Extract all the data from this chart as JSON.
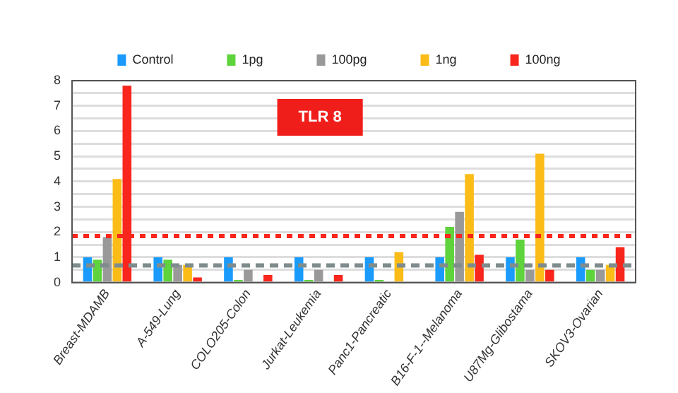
{
  "chart_data": {
    "type": "bar",
    "categories": [
      "Breast-MDAMB",
      "A-549-Lung",
      "COLO205-Colon",
      "Jurkat-Leukemia",
      "Panc1-Pancreatic",
      "B16-F-1--Melanoma",
      "U87Mg-Glibostama",
      "SKOV3-Ovarian"
    ],
    "series": [
      {
        "name": "Control",
        "color": "#1a9bfc",
        "values": [
          1.0,
          1.0,
          1.0,
          1.0,
          1.0,
          1.0,
          1.0,
          1.0
        ]
      },
      {
        "name": "1pg",
        "color": "#5ed33c",
        "values": [
          0.9,
          0.9,
          0.1,
          0.1,
          0.1,
          2.2,
          1.7,
          0.5
        ]
      },
      {
        "name": "100pg",
        "color": "#999999",
        "values": [
          1.8,
          0.7,
          0.5,
          0.5,
          0,
          2.8,
          0.5,
          0.5
        ]
      },
      {
        "name": "1ng",
        "color": "#fbbc18",
        "values": [
          4.1,
          0.7,
          0,
          0,
          1.2,
          4.3,
          5.1,
          0.7
        ]
      },
      {
        "name": "100ng",
        "color": "#f8261c",
        "values": [
          7.8,
          0.2,
          0.3,
          0.3,
          0,
          1.1,
          0.5,
          1.4
        ]
      }
    ],
    "ylim": [
      0,
      8
    ],
    "yticks": [
      0,
      {
        "value": 0.5,
        "label": null
      },
      1,
      {
        "value": 1.5,
        "label": null
      },
      2,
      {
        "value": 2.5,
        "label": null
      },
      3,
      {
        "value": 3.5,
        "label": null
      },
      4,
      {
        "value": 4.5,
        "label": null
      },
      5,
      {
        "value": 5.5,
        "label": null
      },
      6,
      {
        "value": 6.5,
        "label": null
      },
      7,
      {
        "value": 7.5,
        "label": null
      },
      8
    ],
    "grid": "y",
    "legend": "top",
    "ref_lines": [
      {
        "axis": "y",
        "value": 1.84,
        "color": "#f8261c",
        "line_style": "dotted"
      },
      {
        "axis": "y",
        "value": 0.68,
        "color": "#7f8c8d",
        "line_style": "dashed"
      }
    ],
    "annotations": [
      "TLR 8"
    ]
  }
}
